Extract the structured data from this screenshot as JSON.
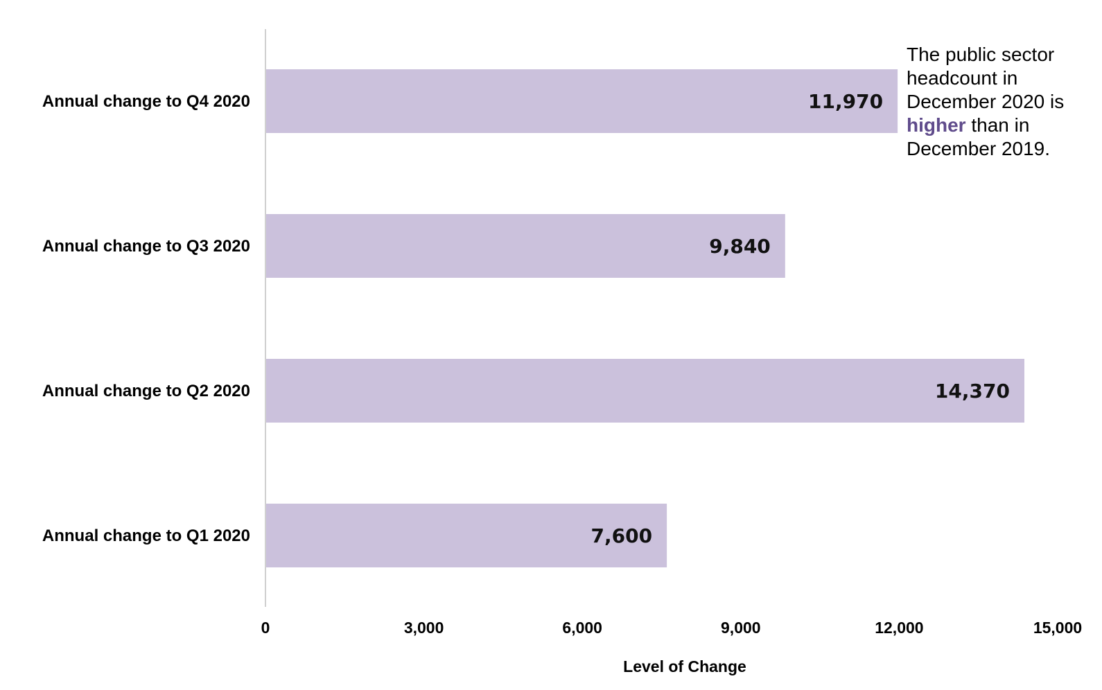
{
  "chart_data": {
    "type": "bar",
    "orientation": "horizontal",
    "categories": [
      "Annual change to Q4 2020",
      "Annual change to Q3 2020",
      "Annual change to Q2 2020",
      "Annual change to Q1 2020"
    ],
    "values": [
      11970,
      9840,
      14370,
      7600
    ],
    "data_labels": [
      "11,970",
      "9,840",
      "14,370",
      "7,600"
    ],
    "xlabel": "Level of Change",
    "ylabel": "",
    "xlim": [
      0,
      15000
    ],
    "x_ticks": [
      0,
      3000,
      6000,
      9000,
      12000,
      15000
    ],
    "x_tick_labels": [
      "0",
      "3,000",
      "6,000",
      "9,000",
      "12,000",
      "15,000"
    ],
    "grid": false,
    "bar_color": "#cbc1dc",
    "annotation": {
      "before": "The public sector headcount in December 2020 is ",
      "highlight": "higher",
      "after": " than in December 2019.",
      "highlight_color": "#5f4b8b"
    }
  }
}
